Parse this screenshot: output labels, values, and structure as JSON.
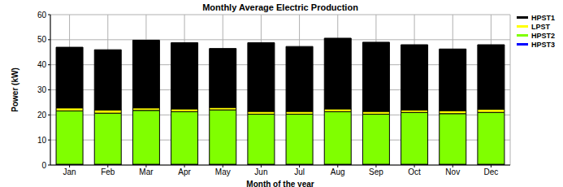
{
  "chart_data": {
    "type": "bar",
    "title": "Monthly Average Electric Production",
    "x_label": "Month of the year",
    "y_label": "Power (kW)",
    "categories": [
      "Jan",
      "Feb",
      "Mar",
      "Apr",
      "May",
      "Jun",
      "Jul",
      "Aug",
      "Sep",
      "Oct",
      "Nov",
      "Dec"
    ],
    "series": [
      {
        "name": "HPST1",
        "color": "#000000",
        "values": [
          24.2,
          24.0,
          27.0,
          26.4,
          23.5,
          27.4,
          25.9,
          28.2,
          27.6,
          26.0,
          24.6,
          25.7
        ]
      },
      {
        "name": "LPST",
        "color": "#ffff00",
        "values": [
          1.2,
          1.3,
          1.0,
          1.1,
          1.0,
          1.1,
          1.1,
          1.1,
          1.1,
          1.0,
          1.2,
          1.3
        ]
      },
      {
        "name": "HPST2",
        "color": "#80ff00",
        "values": [
          21.3,
          20.4,
          21.5,
          21.0,
          21.7,
          20.0,
          20.0,
          21.0,
          20.0,
          20.7,
          20.2,
          20.7
        ]
      },
      {
        "name": "HPST3",
        "color": "#0000ff",
        "values": [
          0.3,
          0.3,
          0.3,
          0.3,
          0.3,
          0.3,
          0.3,
          0.3,
          0.3,
          0.3,
          0.3,
          0.3
        ]
      }
    ],
    "ylim": [
      0,
      60
    ],
    "yticks": [
      0,
      10,
      20,
      30,
      40,
      50,
      60
    ],
    "stacked": true,
    "grid": true,
    "legend": "upper right"
  }
}
